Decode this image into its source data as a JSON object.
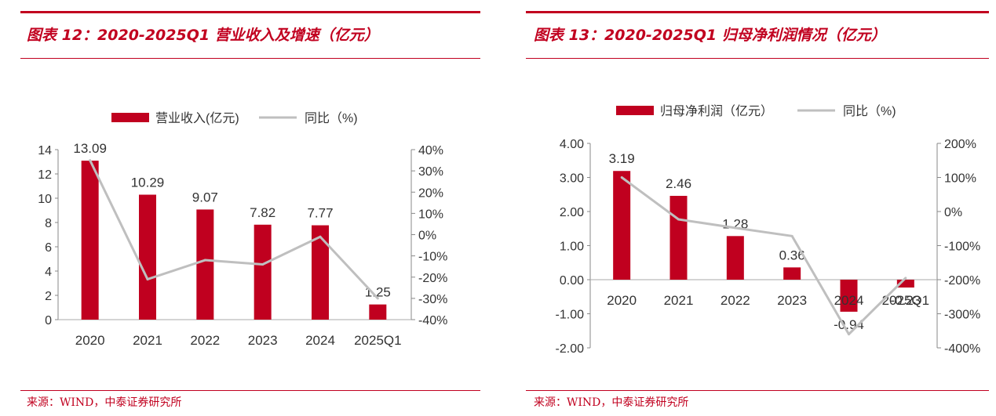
{
  "colors": {
    "brand": "#c1001f",
    "bar": "#c0001f",
    "line": "#bfbfbf",
    "text": "#333333"
  },
  "chart_data": [
    {
      "type": "bar",
      "figure_title": "图表 12：2020-2025Q1 营业收入及增速（亿元）",
      "source": "来源：WIND，中泰证券研究所",
      "categories": [
        "2020",
        "2021",
        "2022",
        "2023",
        "2024",
        "2025Q1"
      ],
      "series": [
        {
          "name": "营业收入(亿元)",
          "kind": "bar",
          "axis": "left",
          "values": [
            13.09,
            10.29,
            9.07,
            7.82,
            7.77,
            1.25
          ],
          "labels": [
            "13.09",
            "10.29",
            "9.07",
            "7.82",
            "7.77",
            "1.25"
          ]
        },
        {
          "name": "同比（%)",
          "kind": "line",
          "axis": "right",
          "values": [
            35,
            -21,
            -12,
            -14,
            -1,
            -30
          ]
        }
      ],
      "left_axis": {
        "min": 0,
        "max": 14,
        "ticks": [
          0,
          2,
          4,
          6,
          8,
          10,
          12,
          14
        ],
        "tick_labels": [
          "0",
          "2",
          "4",
          "6",
          "8",
          "10",
          "12",
          "14"
        ]
      },
      "right_axis": {
        "min": -40,
        "max": 40,
        "ticks": [
          -40,
          -30,
          -20,
          -10,
          0,
          10,
          20,
          30,
          40
        ],
        "tick_labels": [
          "-40%",
          "-30%",
          "-20%",
          "-10%",
          "0%",
          "10%",
          "20%",
          "30%",
          "40%"
        ]
      },
      "legend_position": "top"
    },
    {
      "type": "bar",
      "figure_title": "图表 13：2020-2025Q1 归母净利润情况（亿元）",
      "source": "来源：WIND，中泰证券研究所",
      "categories": [
        "2020",
        "2021",
        "2022",
        "2023",
        "2024",
        "2025Q1"
      ],
      "series": [
        {
          "name": "归母净利润（亿元）",
          "kind": "bar",
          "axis": "left",
          "values": [
            3.19,
            2.46,
            1.28,
            0.36,
            -0.94,
            -0.23
          ],
          "labels": [
            "3.19",
            "2.46",
            "1.28",
            "0.36",
            "-0.94",
            "-0.23"
          ]
        },
        {
          "name": "同比（%)",
          "kind": "line",
          "axis": "right",
          "values": [
            100,
            -23,
            -48,
            -72,
            -360,
            -195
          ]
        }
      ],
      "left_axis": {
        "min": -2,
        "max": 4,
        "ticks": [
          -2,
          -1,
          0,
          1,
          2,
          3,
          4
        ],
        "tick_labels": [
          "-2.00",
          "-1.00",
          "0.00",
          "1.00",
          "2.00",
          "3.00",
          "4.00"
        ]
      },
      "right_axis": {
        "min": -400,
        "max": 200,
        "ticks": [
          -400,
          -300,
          -200,
          -100,
          0,
          100,
          200
        ],
        "tick_labels": [
          "-400%",
          "-300%",
          "-200%",
          "-100%",
          "0%",
          "100%",
          "200%"
        ]
      },
      "legend_position": "top"
    }
  ]
}
